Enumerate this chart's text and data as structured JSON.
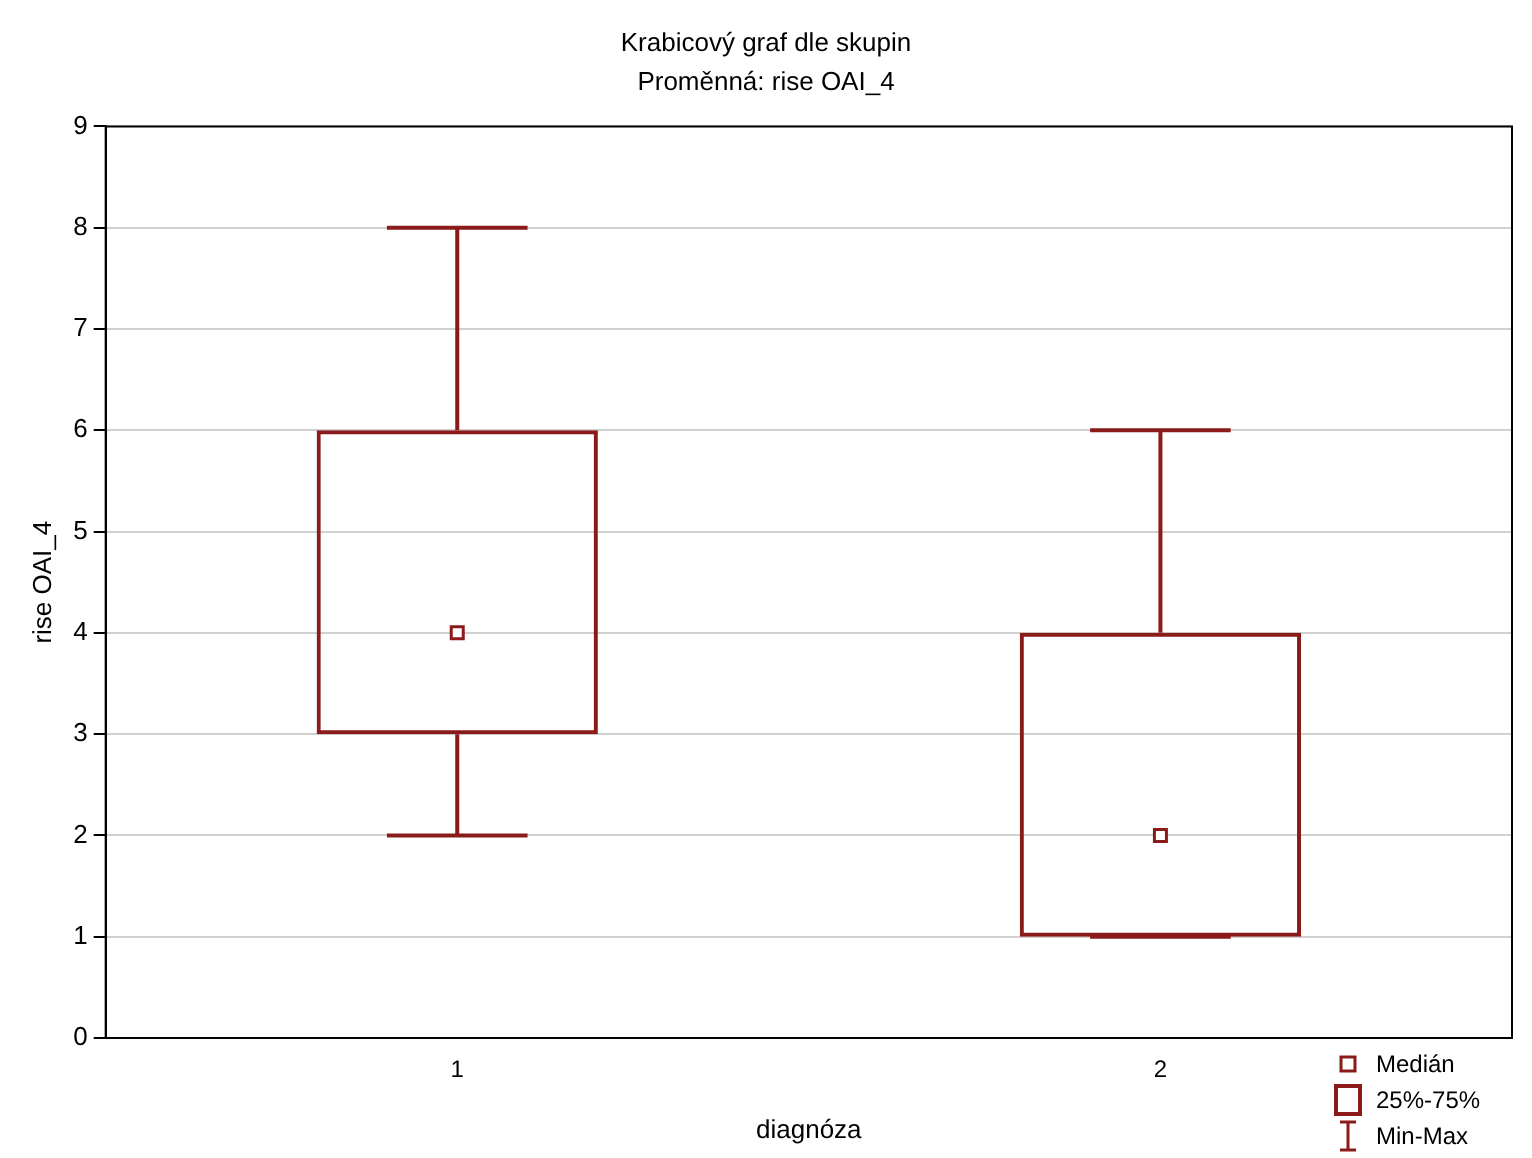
{
  "chart_data": {
    "type": "box",
    "title": "Krabicový graf dle skupin",
    "subtitle": "Proměnná: rise OAI_4",
    "xlabel": "diagnóza",
    "ylabel": "rise OAI_4",
    "categories": [
      "1",
      "2"
    ],
    "series": [
      {
        "color": "#8b1a1a",
        "boxes": [
          {
            "low": 2,
            "q1": 3,
            "median": 4,
            "q3": 6,
            "high": 8
          },
          {
            "low": 1,
            "q1": 1,
            "median": 2,
            "q3": 4,
            "high": 6
          }
        ]
      }
    ],
    "ylim": [
      0,
      9
    ],
    "yticks": [
      0,
      1,
      2,
      3,
      4,
      5,
      6,
      7,
      8,
      9
    ],
    "grid": "y",
    "annotations": [
      "Medián",
      "25%-75%",
      "Min-Max"
    ]
  }
}
